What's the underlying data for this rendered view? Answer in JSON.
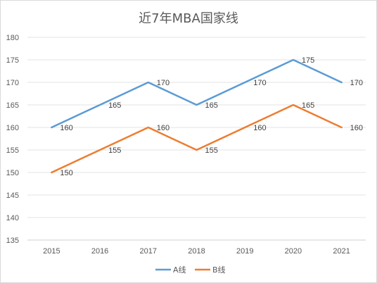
{
  "chart_data": {
    "type": "line",
    "title": "近7年MBA国家线",
    "categories": [
      "2015",
      "2016",
      "2017",
      "2018",
      "2019",
      "2020",
      "2021"
    ],
    "series": [
      {
        "name": "A线",
        "color": "#5b9bd5",
        "values": [
          160,
          165,
          170,
          165,
          170,
          175,
          170
        ]
      },
      {
        "name": "B线",
        "color": "#ed7d31",
        "values": [
          150,
          155,
          160,
          155,
          160,
          165,
          160
        ]
      }
    ],
    "ylim": [
      135,
      180
    ],
    "yticks": [
      "135",
      "140",
      "145",
      "150",
      "155",
      "160",
      "165",
      "170",
      "175",
      "180"
    ],
    "grid": true,
    "legend": "bottom-center"
  }
}
